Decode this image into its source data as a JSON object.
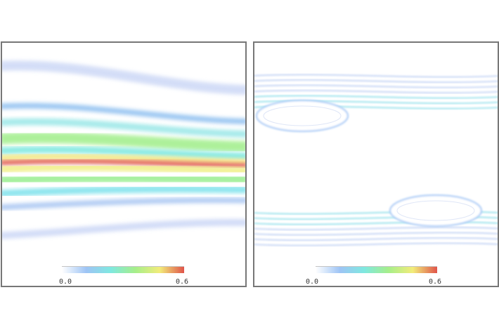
{
  "panels": [
    {
      "colorbar": {
        "min_label": "0.0",
        "max_label": "0.6"
      }
    },
    {
      "colorbar": {
        "min_label": "0.0",
        "max_label": "0.6"
      }
    }
  ]
}
